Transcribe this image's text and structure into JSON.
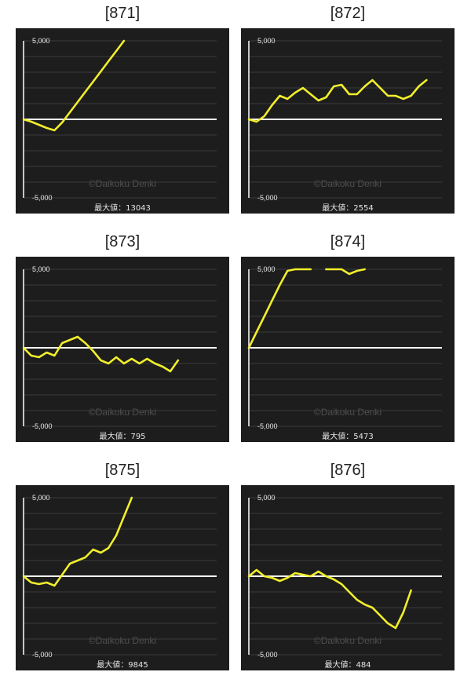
{
  "colors": {
    "background": "#1c1d1c",
    "grid": "#3b3c3b",
    "zero_line": "#ffffff",
    "series": "#f2ee2c",
    "text": "#e6e6e6",
    "watermark": "#4d4e4d"
  },
  "chart_data": [
    {
      "type": "line",
      "title": "[871]",
      "ylim": [
        -5000,
        5000
      ],
      "y_tick_labels": [
        "5,000",
        "-5,000"
      ],
      "watermark": "©Daikoku Denki",
      "footer": "最大値：13043",
      "x": [
        0,
        4,
        8,
        12,
        16,
        20,
        24,
        28,
        32,
        36,
        40,
        44,
        48,
        52,
        56,
        60,
        64,
        68,
        72,
        76,
        80,
        84,
        88,
        92,
        96,
        100
      ],
      "y": [
        0,
        -150,
        -350,
        -550,
        -700,
        -200,
        450,
        1100,
        1750,
        2400,
        3050,
        3700,
        4350,
        5000,
        null,
        null,
        null,
        null,
        null,
        null,
        null,
        null,
        null,
        null,
        null,
        null
      ]
    },
    {
      "type": "line",
      "title": "[872]",
      "ylim": [
        -5000,
        5000
      ],
      "y_tick_labels": [
        "5,000",
        "-5,000"
      ],
      "watermark": "©Daikoku Denki",
      "footer": "最大値：2554",
      "x": [
        0,
        4,
        8,
        12,
        16,
        20,
        24,
        28,
        32,
        36,
        40,
        44,
        48,
        52,
        56,
        60,
        64,
        68,
        72,
        76,
        80,
        84,
        88,
        92,
        96,
        100
      ],
      "y": [
        0,
        -150,
        200,
        900,
        1500,
        1300,
        1700,
        2000,
        1600,
        1200,
        1400,
        2100,
        2200,
        1600,
        1600,
        2100,
        2500,
        2000,
        1500,
        1500,
        1300,
        1500,
        2100,
        2500,
        null,
        null
      ]
    },
    {
      "type": "line",
      "title": "[873]",
      "ylim": [
        -5000,
        5000
      ],
      "y_tick_labels": [
        "5,000",
        "-5,000"
      ],
      "watermark": "©Daikoku Denki",
      "footer": "最大値：795",
      "x": [
        0,
        4,
        8,
        12,
        16,
        20,
        24,
        28,
        32,
        36,
        40,
        44,
        48,
        52,
        56,
        60,
        64,
        68,
        72,
        76,
        80,
        84,
        88,
        92,
        96,
        100
      ],
      "y": [
        0,
        -500,
        -600,
        -300,
        -500,
        300,
        500,
        700,
        300,
        -200,
        -800,
        -1000,
        -600,
        -1000,
        -700,
        -1000,
        -700,
        -1000,
        -1200,
        -1500,
        -800,
        null,
        null,
        null,
        null,
        null
      ]
    },
    {
      "type": "line",
      "title": "[874]",
      "ylim": [
        -5000,
        5000
      ],
      "y_tick_labels": [
        "5,000",
        "-5,000"
      ],
      "watermark": "©Daikoku Denki",
      "footer": "最大値：5473",
      "x": [
        0,
        4,
        8,
        12,
        16,
        20,
        24,
        28,
        32,
        36,
        40,
        44,
        48,
        52,
        56,
        60,
        64,
        68,
        72,
        76,
        80,
        84,
        88,
        92,
        96,
        100
      ],
      "y": [
        0,
        1000,
        2000,
        3000,
        4000,
        4900,
        5000,
        5000,
        5000,
        null,
        5000,
        5000,
        5000,
        4700,
        4900,
        5000,
        null,
        5000,
        null,
        null,
        null,
        null,
        null,
        null,
        null,
        null
      ]
    },
    {
      "type": "line",
      "title": "[875]",
      "ylim": [
        -5000,
        5000
      ],
      "y_tick_labels": [
        "5,000",
        "-5,000"
      ],
      "watermark": "©Daikoku Denki",
      "footer": "最大値：9845",
      "x": [
        0,
        4,
        8,
        12,
        16,
        20,
        24,
        28,
        32,
        36,
        40,
        44,
        48,
        52,
        56,
        60,
        64,
        68,
        72,
        76,
        80,
        84,
        88,
        92,
        96,
        100
      ],
      "y": [
        0,
        -400,
        -500,
        -400,
        -600,
        100,
        800,
        1000,
        1200,
        1700,
        1500,
        1800,
        2600,
        3800,
        5000,
        null,
        null,
        null,
        null,
        null,
        null,
        null,
        null,
        null,
        null,
        null
      ]
    },
    {
      "type": "line",
      "title": "[876]",
      "ylim": [
        -5000,
        5000
      ],
      "y_tick_labels": [
        "5,000",
        "-5,000"
      ],
      "watermark": "©Daikoku Denki",
      "footer": "最大値：484",
      "x": [
        0,
        4,
        8,
        12,
        16,
        20,
        24,
        28,
        32,
        36,
        40,
        44,
        48,
        52,
        56,
        60,
        64,
        68,
        72,
        76,
        80,
        84,
        88,
        92,
        96,
        100
      ],
      "y": [
        0,
        400,
        0,
        -100,
        -300,
        -100,
        200,
        100,
        0,
        300,
        0,
        -200,
        -500,
        -1000,
        -1500,
        -1800,
        -2000,
        -2500,
        -3000,
        -3300,
        -2300,
        -900,
        null,
        null,
        null,
        null
      ]
    }
  ]
}
